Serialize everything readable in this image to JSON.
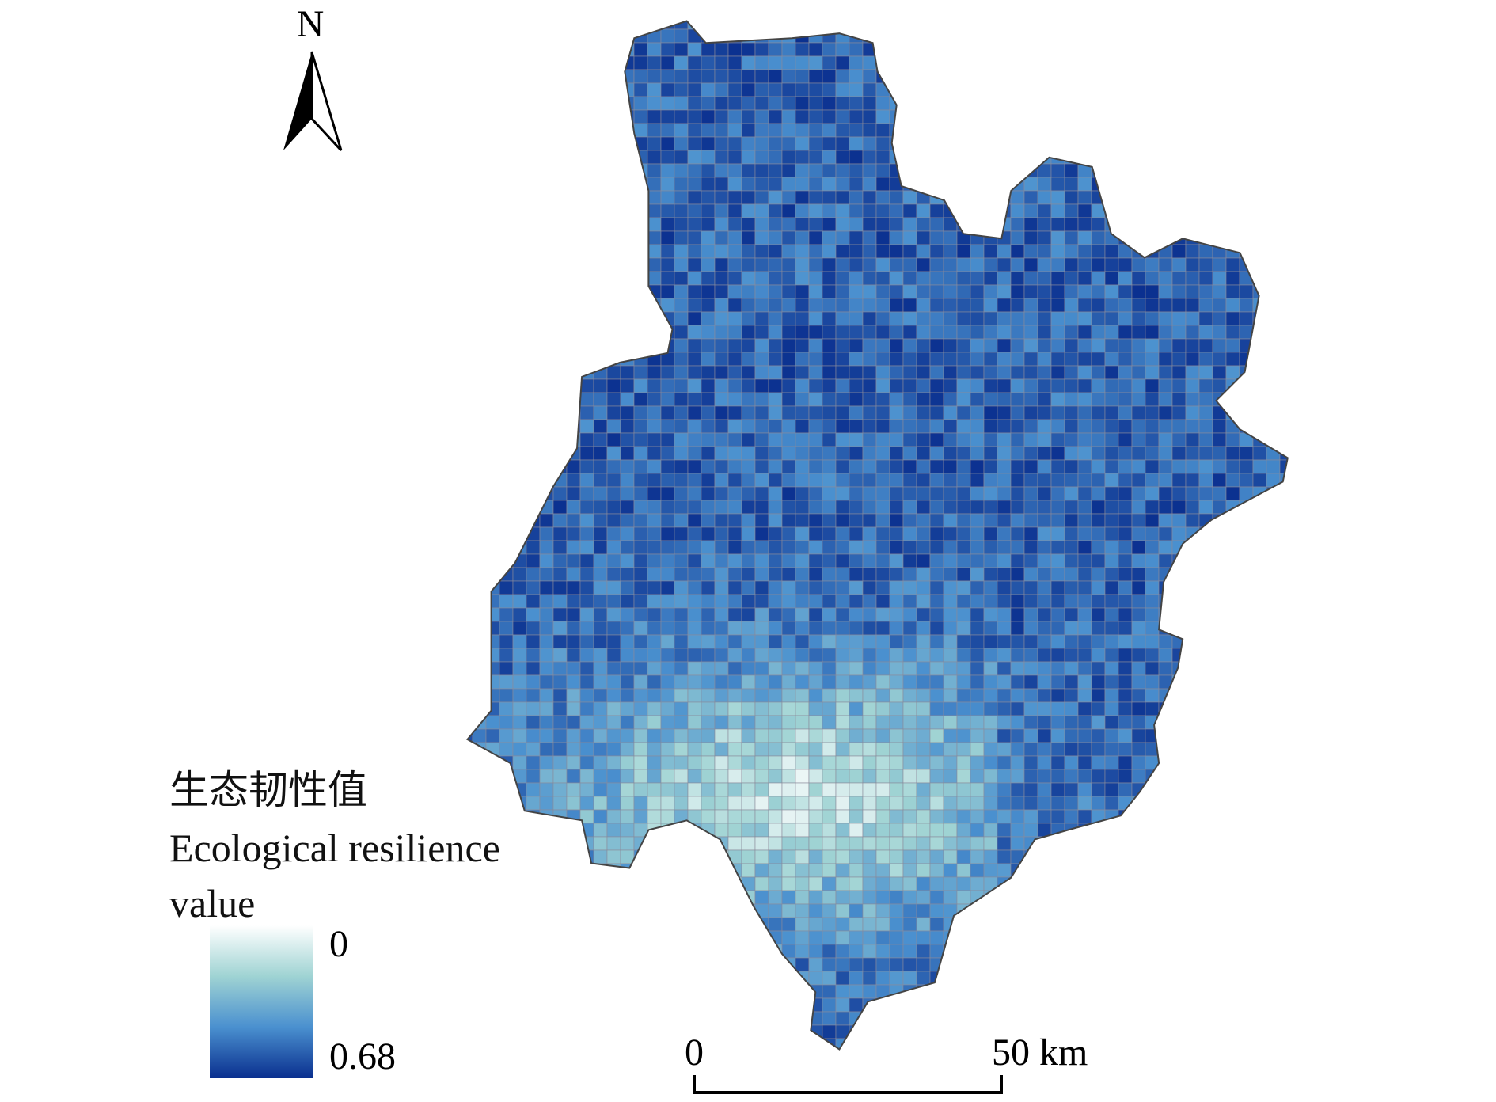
{
  "north_arrow": {
    "label": "N"
  },
  "legend": {
    "title_zh": "生态韧性值",
    "title_en": "Ecological resilience value",
    "min": 0,
    "max": 0.68,
    "colors": [
      "#ffffff",
      "#9fd3d3",
      "#4a90cf",
      "#0a2f8f"
    ]
  },
  "scale_bar": {
    "xlim": [
      0,
      50
    ],
    "ticks": [
      0,
      {
        "value": 50,
        "label": "50 km"
      }
    ]
  }
}
